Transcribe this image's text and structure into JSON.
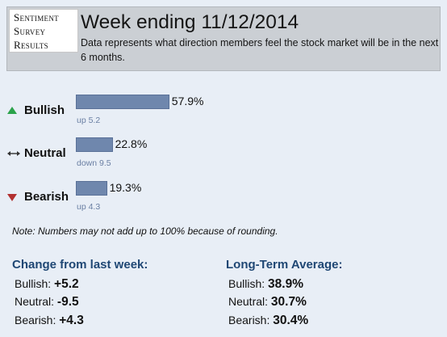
{
  "logo": {
    "line1": "Sentiment",
    "line2": "Survey",
    "line3": "Results"
  },
  "header": {
    "title": "Week ending 11/12/2014",
    "subtitle": "Data represents what direction members feel the stock market will be in the next 6 months."
  },
  "chart_data": {
    "type": "bar",
    "orientation": "horizontal",
    "categories": [
      "Bullish",
      "Neutral",
      "Bearish"
    ],
    "values": [
      57.9,
      22.8,
      19.3
    ],
    "value_labels": [
      "57.9%",
      "22.8%",
      "19.3%"
    ],
    "changes": [
      "up 5.2",
      "down 9.5",
      "up 4.3"
    ],
    "icons": [
      "up-arrow-icon",
      "left-right-arrow-icon",
      "down-arrow-icon"
    ],
    "icon_colors": [
      "#2aa24a",
      "#333333",
      "#b23030"
    ],
    "bar_color": "#6f87ad",
    "xlim": [
      0,
      100
    ]
  },
  "note": "Note: Numbers may not add up to 100% because of rounding.",
  "change_section": {
    "title": "Change from last week:",
    "items": [
      {
        "label": "Bullish:",
        "value": "+5.2"
      },
      {
        "label": "Neutral:",
        "value": "-9.5"
      },
      {
        "label": "Bearish:",
        "value": "+4.3"
      }
    ]
  },
  "average_section": {
    "title": "Long-Term Average:",
    "items": [
      {
        "label": "Bullish:",
        "value": "38.9%"
      },
      {
        "label": "Neutral:",
        "value": "30.7%"
      },
      {
        "label": "Bearish:",
        "value": "30.4%"
      }
    ]
  }
}
